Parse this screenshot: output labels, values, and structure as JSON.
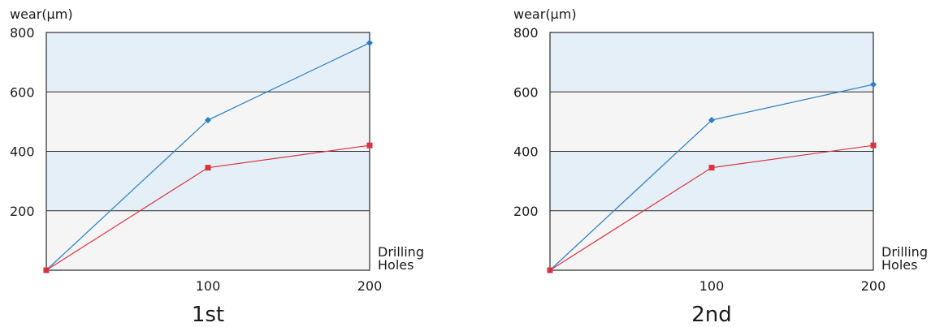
{
  "chart_data": [
    {
      "type": "line",
      "title": "1st",
      "ylabel": "wear(μm)",
      "xlabel_lines": [
        "Drilling",
        "Holes"
      ],
      "xlim": [
        0,
        200
      ],
      "ylim": [
        0,
        800
      ],
      "x_ticks": [
        100,
        200
      ],
      "y_ticks": [
        200,
        400,
        600,
        800
      ],
      "grid": true,
      "band_colors": [
        "#f5f5f5",
        "#e5eff7"
      ],
      "series": [
        {
          "color": "#2a7fc1",
          "marker": "diamond",
          "x": [
            0,
            100,
            200
          ],
          "y": [
            0,
            505,
            765
          ]
        },
        {
          "color": "#d9333f",
          "marker": "square",
          "x": [
            0,
            100,
            200
          ],
          "y": [
            0,
            345,
            420
          ]
        }
      ]
    },
    {
      "type": "line",
      "title": "2nd",
      "ylabel": "wear(μm)",
      "xlabel_lines": [
        "Drilling",
        "Holes"
      ],
      "xlim": [
        0,
        200
      ],
      "ylim": [
        0,
        800
      ],
      "x_ticks": [
        100,
        200
      ],
      "y_ticks": [
        200,
        400,
        600,
        800
      ],
      "grid": true,
      "band_colors": [
        "#f5f5f5",
        "#e5eff7"
      ],
      "series": [
        {
          "color": "#2a7fc1",
          "marker": "diamond",
          "x": [
            0,
            100,
            200
          ],
          "y": [
            0,
            505,
            625
          ]
        },
        {
          "color": "#d9333f",
          "marker": "square",
          "x": [
            0,
            100,
            200
          ],
          "y": [
            0,
            345,
            420
          ]
        }
      ]
    }
  ]
}
